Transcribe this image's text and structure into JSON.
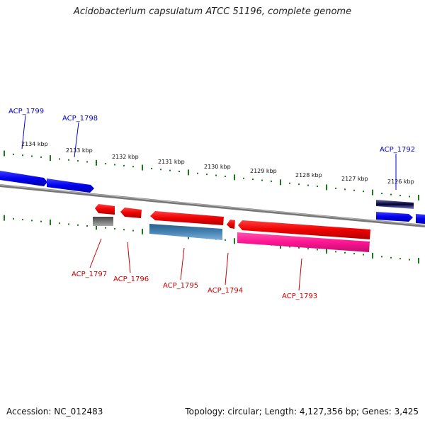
{
  "title": "Acidobacterium capsulatum ATCC 51196, complete genome",
  "accession": "Accession: NC_012483",
  "summary": "Topology: circular; Length: 4,127,356 bp; Genes: 3,425",
  "colors": {
    "forward_gene": "#0000ee",
    "reverse_gene": "#ee0000",
    "rrna": "#ff1493",
    "cds_blue": "#4682b4",
    "backbone": "#888888",
    "ticks": "#1a7a1a"
  },
  "ruler": [
    {
      "label": "2134 kbp"
    },
    {
      "label": "2133 kbp"
    },
    {
      "label": "2132 kbp"
    },
    {
      "label": "2131 kbp"
    },
    {
      "label": "2130 kbp"
    },
    {
      "label": "2129 kbp"
    },
    {
      "label": "2128 kbp"
    },
    {
      "label": "2127 kbp"
    },
    {
      "label": "2126 kbp"
    }
  ],
  "genes_forward": [
    {
      "name": "ACP_1799"
    },
    {
      "name": "ACP_1798"
    },
    {
      "name": "ACP_1792"
    }
  ],
  "genes_reverse": [
    {
      "name": "ACP_1797"
    },
    {
      "name": "ACP_1796"
    },
    {
      "name": "ACP_1795"
    },
    {
      "name": "ACP_1794"
    },
    {
      "name": "ACP_1793"
    }
  ]
}
